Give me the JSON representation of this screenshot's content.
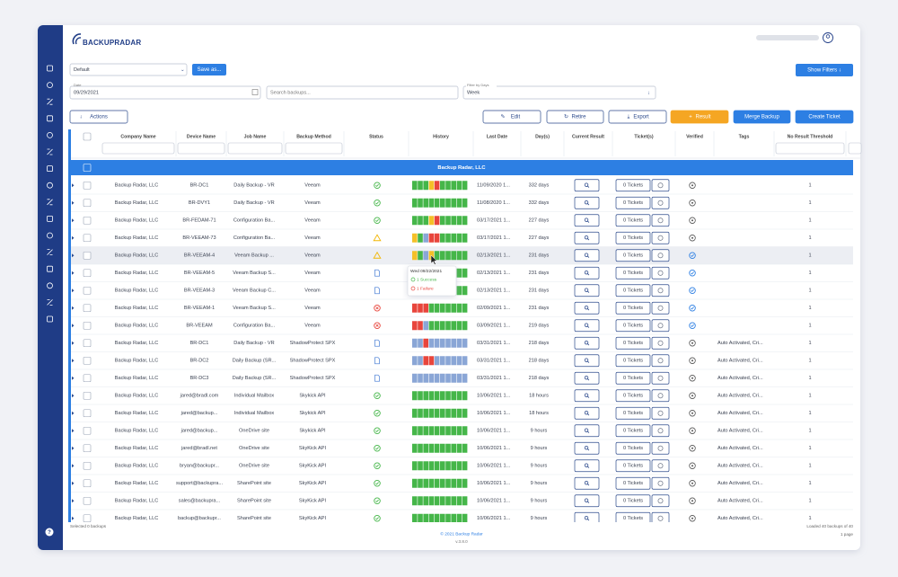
{
  "header": {
    "logo": "BACKUPRADAR"
  },
  "toolbar": {
    "view": "Default",
    "save": "Save as...",
    "show_filters": "Show Filters ↓",
    "date_label": "Date",
    "date": "09/29/2021",
    "search": "Search backups...",
    "range_label": "Filter by Days",
    "range": "Week",
    "actions": "Actions",
    "edit": "Edit",
    "retire": "Retire",
    "export": "Export",
    "result": "Result",
    "merge": "Merge Backup",
    "create_ticket": "Create Ticket"
  },
  "table": {
    "columns": [
      "Company Name",
      "Device Name",
      "Job Name",
      "Backup Method",
      "Status",
      "History",
      "Last Date",
      "Day(s)",
      "Current Result",
      "Ticket(s)",
      "Verified",
      "Tags",
      "No Result Threshold"
    ],
    "group": "Backup Radar, LLC",
    "history_colors": {
      "g": "#45b649",
      "y": "#f4c028",
      "r": "#e8453c",
      "b": "#8aa6d6"
    },
    "rows": [
      {
        "company": "Backup Radar, LLC",
        "device": "BR-DC1",
        "job": "Daily Backup - VR",
        "method": "Veeam",
        "status": "success",
        "history": [
          "g",
          "g",
          "g",
          "y",
          "r",
          "g",
          "g",
          "g",
          "g",
          "g"
        ],
        "last": "11/09/2020 1...",
        "days": "332 days",
        "tickets": "0 Tickets",
        "verified": "unverified",
        "tags": "",
        "threshold": 1
      },
      {
        "company": "Backup Radar, LLC",
        "device": "BR-DVY1",
        "job": "Daily Backup - VR",
        "method": "Veeam",
        "status": "success",
        "history": [
          "g",
          "g",
          "g",
          "g",
          "g",
          "g",
          "g",
          "g",
          "g",
          "g"
        ],
        "last": "11/08/2020 1...",
        "days": "332 days",
        "tickets": "0 Tickets",
        "verified": "unverified",
        "tags": "",
        "threshold": 1
      },
      {
        "company": "Backup Radar, LLC",
        "device": "BR-FEDAM-71",
        "job": "Configuration Ba...",
        "method": "Veeam",
        "status": "success",
        "history": [
          "g",
          "g",
          "g",
          "y",
          "r",
          "g",
          "g",
          "g",
          "g",
          "g"
        ],
        "last": "03/17/2021 1...",
        "days": "227 days",
        "tickets": "0 Tickets",
        "verified": "unverified",
        "tags": "",
        "threshold": 1
      },
      {
        "company": "Backup Radar, LLC",
        "device": "BR-VEEAM-73",
        "job": "Configuration Ba...",
        "method": "Veeam",
        "status": "warning",
        "history": [
          "y",
          "g",
          "b",
          "r",
          "r",
          "g",
          "g",
          "g",
          "g",
          "g"
        ],
        "last": "03/17/2021 1...",
        "days": "227 days",
        "tickets": "0 Tickets",
        "verified": "unverified",
        "tags": "",
        "threshold": 1
      },
      {
        "company": "Backup Radar, LLC",
        "device": "BR-VEEAM-4",
        "job": "Veeam Backup ...",
        "method": "Veeam",
        "status": "warning",
        "history": [
          "y",
          "g",
          "b",
          "y",
          "g",
          "g",
          "g",
          "g",
          "g",
          "g"
        ],
        "last": "02/13/2021 1...",
        "days": "231 days",
        "tickets": "0 Tickets",
        "verified": "verified",
        "tags": "",
        "threshold": 1
      },
      {
        "company": "Backup Radar, LLC",
        "device": "BR-VEEAM-5",
        "job": "Veeam Backup S...",
        "method": "Veeam",
        "status": "pending",
        "history": [
          "b",
          "b",
          "b",
          "b",
          "g",
          "g",
          "g",
          "g",
          "g",
          "g"
        ],
        "last": "02/13/2021 1...",
        "days": "231 days",
        "tickets": "0 Tickets",
        "verified": "verified",
        "tags": "",
        "threshold": 1
      },
      {
        "company": "Backup Radar, LLC",
        "device": "BR-VEEAM-3",
        "job": "Veeam Backup C...",
        "method": "Veeam",
        "status": "pending",
        "history": [
          "b",
          "b",
          "b",
          "g",
          "g",
          "g",
          "g",
          "g",
          "g",
          "g"
        ],
        "last": "02/13/2021 1...",
        "days": "231 days",
        "tickets": "0 Tickets",
        "verified": "verified",
        "tags": "",
        "threshold": 1
      },
      {
        "company": "Backup Radar, LLC",
        "device": "BR-VEEAM-1",
        "job": "Veeam Backup S...",
        "method": "Veeam",
        "status": "failure",
        "history": [
          "r",
          "r",
          "r",
          "g",
          "g",
          "g",
          "g",
          "g",
          "g",
          "g"
        ],
        "last": "02/09/2021 1...",
        "days": "231 days",
        "tickets": "0 Tickets",
        "verified": "verified",
        "tags": "",
        "threshold": 1
      },
      {
        "company": "Backup Radar, LLC",
        "device": "BR-VEEAM",
        "job": "Configuration Ba...",
        "method": "Veeam",
        "status": "failure",
        "history": [
          "r",
          "r",
          "b",
          "g",
          "g",
          "g",
          "g",
          "g",
          "g",
          "g"
        ],
        "last": "03/09/2021 1...",
        "days": "219 days",
        "tickets": "0 Tickets",
        "verified": "verified",
        "tags": "",
        "threshold": 1
      },
      {
        "company": "Backup Radar, LLC",
        "device": "BR-DC1",
        "job": "Daily Backup - VR",
        "method": "ShadowProtect SPX",
        "status": "pending",
        "history": [
          "b",
          "b",
          "r",
          "b",
          "b",
          "b",
          "b",
          "b",
          "b",
          "b"
        ],
        "last": "03/31/2021 1...",
        "days": "218 days",
        "tickets": "0 Tickets",
        "verified": "unverified",
        "tags": "Auto Activated, Cri...",
        "threshold": 1
      },
      {
        "company": "Backup Radar, LLC",
        "device": "BR-DC2",
        "job": "Daily Backup (SR...",
        "method": "ShadowProtect SPX",
        "status": "pending",
        "history": [
          "b",
          "b",
          "r",
          "r",
          "b",
          "b",
          "b",
          "b",
          "b",
          "b"
        ],
        "last": "03/31/2021 1...",
        "days": "218 days",
        "tickets": "0 Tickets",
        "verified": "unverified",
        "tags": "Auto Activated, Cri...",
        "threshold": 1
      },
      {
        "company": "Backup Radar, LLC",
        "device": "BR-DC3",
        "job": "Daily Backup (SR...",
        "method": "ShadowProtect SPX",
        "status": "pending",
        "history": [
          "b",
          "b",
          "b",
          "b",
          "b",
          "b",
          "b",
          "b",
          "b",
          "b"
        ],
        "last": "03/31/2021 1...",
        "days": "218 days",
        "tickets": "0 Tickets",
        "verified": "unverified",
        "tags": "Auto Activated, Cri...",
        "threshold": 1
      },
      {
        "company": "Backup Radar, LLC",
        "device": "jared@bradl.com",
        "job": "Individual Mailbox",
        "method": "Skykick API",
        "status": "success",
        "history": [
          "g",
          "g",
          "g",
          "g",
          "g",
          "g",
          "g",
          "g",
          "g",
          "g"
        ],
        "last": "10/06/2021 1...",
        "days": "18 hours",
        "tickets": "0 Tickets",
        "verified": "unverified",
        "tags": "Auto Activated, Cri...",
        "threshold": 1
      },
      {
        "company": "Backup Radar, LLC",
        "device": "jared@backup...",
        "job": "Individual Mailbox",
        "method": "Skykick API",
        "status": "success",
        "history": [
          "g",
          "g",
          "g",
          "g",
          "g",
          "g",
          "g",
          "g",
          "g",
          "g"
        ],
        "last": "10/06/2021 1...",
        "days": "18 hours",
        "tickets": "0 Tickets",
        "verified": "unverified",
        "tags": "Auto Activated, Cri...",
        "threshold": 1
      },
      {
        "company": "Backup Radar, LLC",
        "device": "jared@backup...",
        "job": "OneDrive site",
        "method": "Skykick API",
        "status": "success",
        "history": [
          "g",
          "g",
          "g",
          "g",
          "g",
          "g",
          "g",
          "g",
          "g",
          "g"
        ],
        "last": "10/06/2021 1...",
        "days": "9 hours",
        "tickets": "0 Tickets",
        "verified": "unverified",
        "tags": "Auto Activated, Cri...",
        "threshold": 1
      },
      {
        "company": "Backup Radar, LLC",
        "device": "jared@bradl.net",
        "job": "OneDrive site",
        "method": "SkyKick API",
        "status": "success",
        "history": [
          "g",
          "g",
          "g",
          "g",
          "g",
          "g",
          "g",
          "g",
          "g",
          "g"
        ],
        "last": "10/06/2021 1...",
        "days": "9 hours",
        "tickets": "0 Tickets",
        "verified": "unverified",
        "tags": "Auto Activated, Cri...",
        "threshold": 1
      },
      {
        "company": "Backup Radar, LLC",
        "device": "bryan@backupr...",
        "job": "OneDrive site",
        "method": "SkyKick API",
        "status": "success",
        "history": [
          "g",
          "g",
          "g",
          "g",
          "g",
          "g",
          "g",
          "g",
          "g",
          "g"
        ],
        "last": "10/06/2021 1...",
        "days": "9 hours",
        "tickets": "0 Tickets",
        "verified": "unverified",
        "tags": "Auto Activated, Cri...",
        "threshold": 1
      },
      {
        "company": "Backup Radar, LLC",
        "device": "support@backupra...",
        "job": "SharePoint site",
        "method": "SkyKick API",
        "status": "success",
        "history": [
          "g",
          "g",
          "g",
          "g",
          "g",
          "g",
          "g",
          "g",
          "g",
          "g"
        ],
        "last": "10/06/2021 1...",
        "days": "9 hours",
        "tickets": "0 Tickets",
        "verified": "unverified",
        "tags": "Auto Activated, Cri...",
        "threshold": 1
      },
      {
        "company": "Backup Radar, LLC",
        "device": "sales@backupra...",
        "job": "SharePoint site",
        "method": "SkyKick API",
        "status": "success",
        "history": [
          "g",
          "g",
          "g",
          "g",
          "g",
          "g",
          "g",
          "g",
          "g",
          "g"
        ],
        "last": "10/06/2021 1...",
        "days": "9 hours",
        "tickets": "0 Tickets",
        "verified": "unverified",
        "tags": "Auto Activated, Cri...",
        "threshold": 1
      },
      {
        "company": "Backup Radar, LLC",
        "device": "backup@backupr...",
        "job": "SharePoint site",
        "method": "SkyKick API",
        "status": "success",
        "history": [
          "g",
          "g",
          "g",
          "g",
          "g",
          "g",
          "g",
          "g",
          "g",
          "g"
        ],
        "last": "10/06/2021 1...",
        "days": "9 hours",
        "tickets": "0 Tickets",
        "verified": "unverified",
        "tags": "Auto Activated, Cri...",
        "threshold": 1
      }
    ]
  },
  "tooltip": {
    "date": "Wed 09/22/2021",
    "success": "1 Success",
    "failure": "1 Failure"
  },
  "footer": {
    "selected": "Selected 0 backups",
    "copyright": "© 2021 Backup Radar",
    "version": "v.3.8.0",
    "loaded": "Loaded 40 backups of 40",
    "pages": "1 page"
  }
}
